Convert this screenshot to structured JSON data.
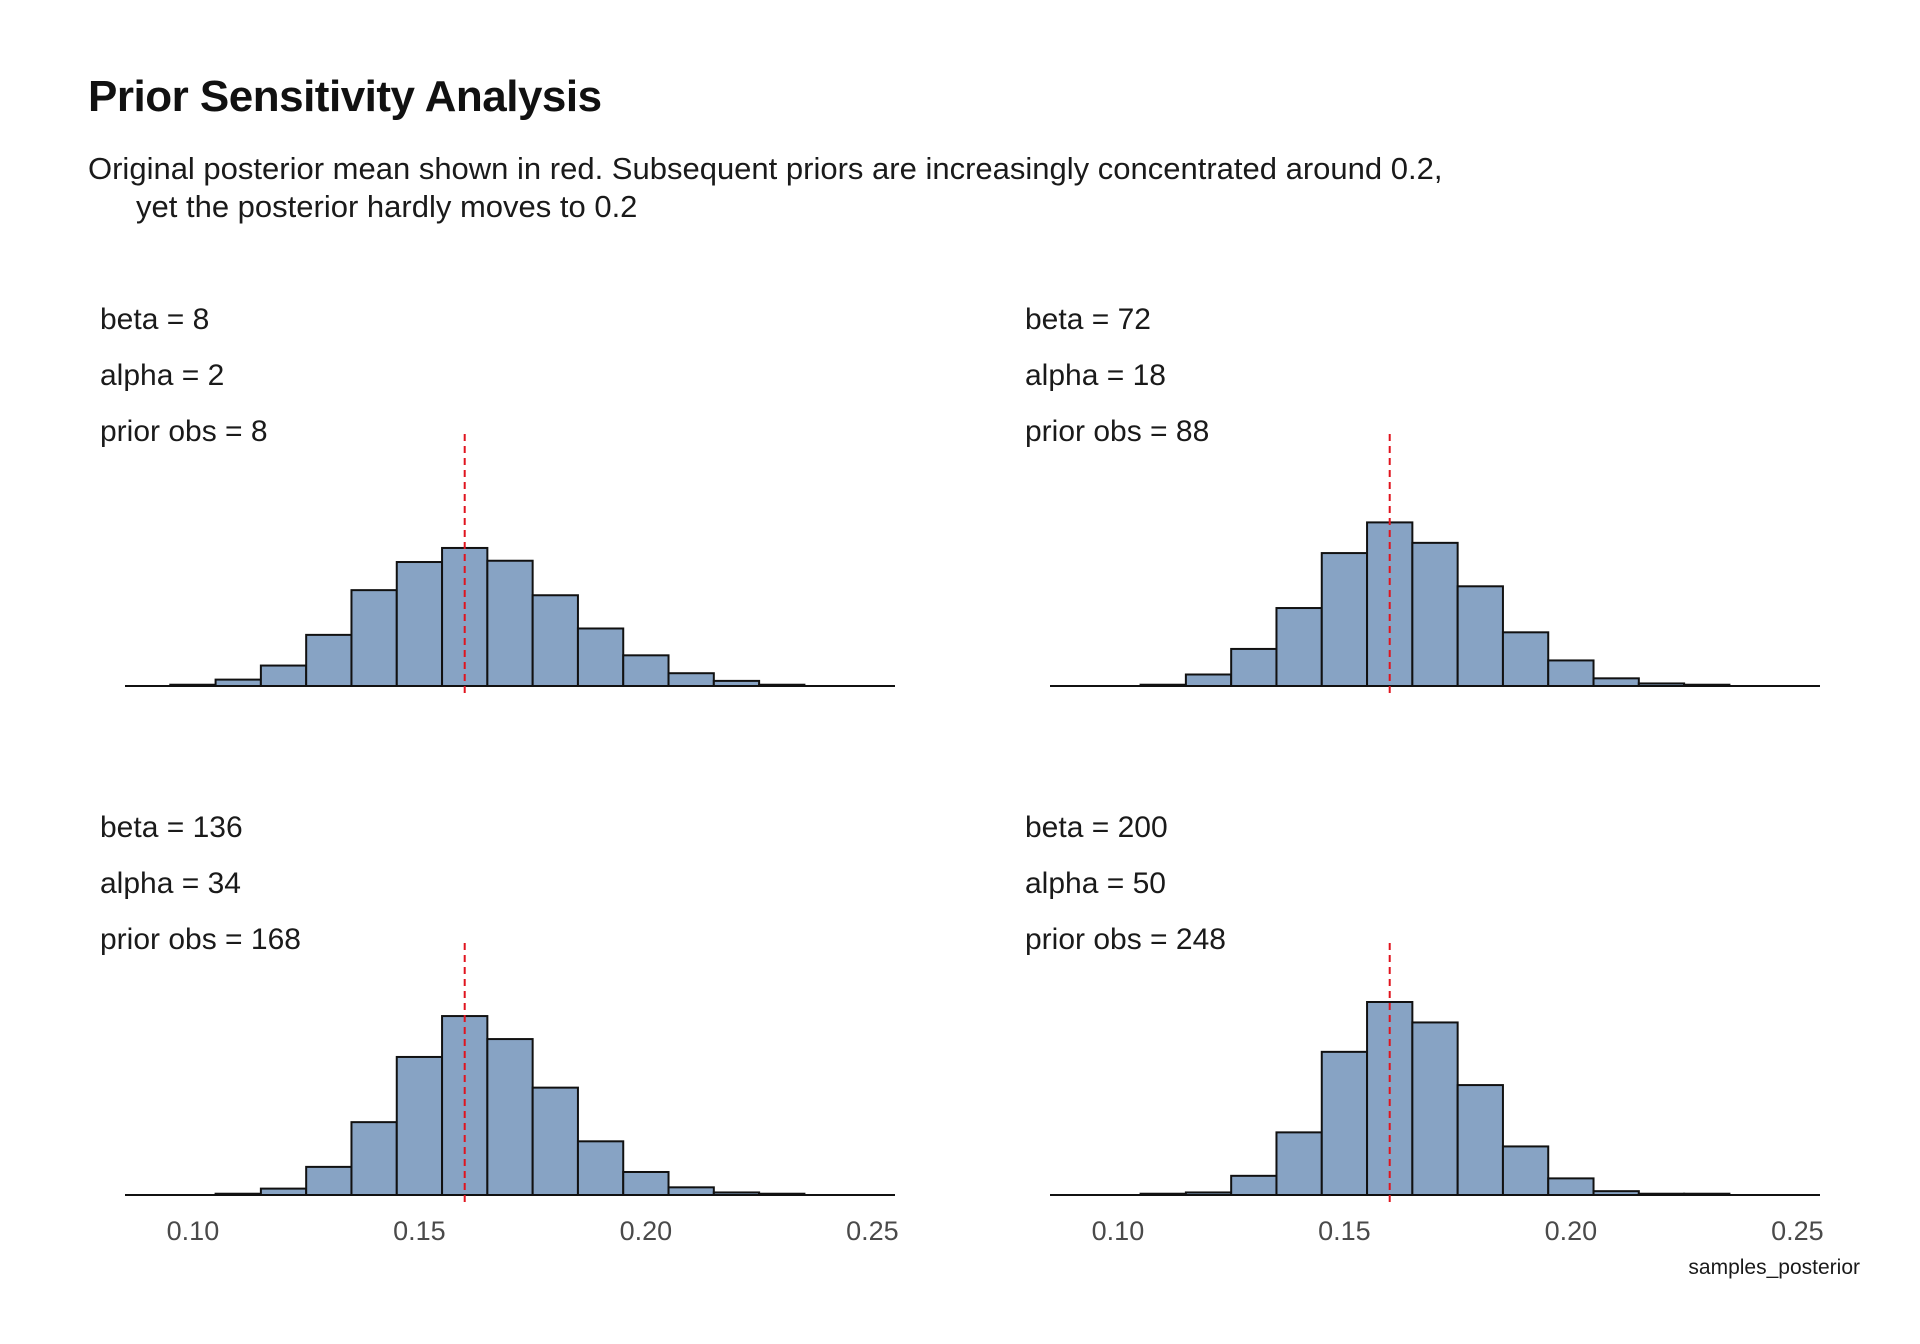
{
  "title": "Prior Sensitivity Analysis",
  "subtitle_line1": "Original posterior mean shown in red. Subsequent priors are increasingly concentrated around 0.2,",
  "subtitle_line2": "yet the posterior hardly moves to 0.2",
  "colors": {
    "bar_fill": "#87a3c4",
    "bar_stroke": "#111111",
    "mean_line": "#e0141e",
    "axis": "#111111"
  },
  "chart_data": {
    "type": "bar",
    "xlabel": "samples_posterior",
    "xlim": [
      0.085,
      0.255
    ],
    "x_ticks": [
      "0.10",
      "0.15",
      "0.20",
      "0.25"
    ],
    "x_tick_values": [
      0.1,
      0.15,
      0.2,
      0.25
    ],
    "bin_width": 0.01,
    "original_posterior_mean": 0.16,
    "panels": [
      {
        "labels": [
          "beta = 8",
          "alpha = 2",
          "prior obs = 8"
        ],
        "bin_starts": [
          0.095,
          0.105,
          0.115,
          0.125,
          0.135,
          0.145,
          0.155,
          0.165,
          0.175,
          0.185,
          0.195,
          0.205,
          0.215,
          0.225
        ],
        "counts": [
          1,
          5,
          16,
          40,
          75,
          97,
          108,
          98,
          71,
          45,
          24,
          10,
          4,
          1
        ]
      },
      {
        "labels": [
          "beta = 72",
          "alpha = 18",
          "prior obs = 88"
        ],
        "bin_starts": [
          0.105,
          0.115,
          0.125,
          0.135,
          0.145,
          0.155,
          0.165,
          0.175,
          0.185,
          0.195,
          0.205,
          0.215,
          0.225
        ],
        "counts": [
          1,
          9,
          29,
          61,
          104,
          128,
          112,
          78,
          42,
          20,
          6,
          2,
          1
        ]
      },
      {
        "labels": [
          "beta = 136",
          "alpha = 34",
          "prior obs = 168"
        ],
        "bin_starts": [
          0.105,
          0.115,
          0.125,
          0.135,
          0.145,
          0.155,
          0.165,
          0.175,
          0.185,
          0.195,
          0.205,
          0.215,
          0.225
        ],
        "counts": [
          1,
          5,
          22,
          57,
          108,
          140,
          122,
          84,
          42,
          18,
          6,
          2,
          1
        ]
      },
      {
        "labels": [
          "beta = 200",
          "alpha = 50",
          "prior obs = 248"
        ],
        "bin_starts": [
          0.105,
          0.115,
          0.125,
          0.135,
          0.145,
          0.155,
          0.165,
          0.175,
          0.185,
          0.195,
          0.205,
          0.215,
          0.225
        ],
        "counts": [
          1,
          2,
          15,
          49,
          112,
          151,
          135,
          86,
          38,
          13,
          3,
          1,
          1
        ]
      }
    ]
  }
}
